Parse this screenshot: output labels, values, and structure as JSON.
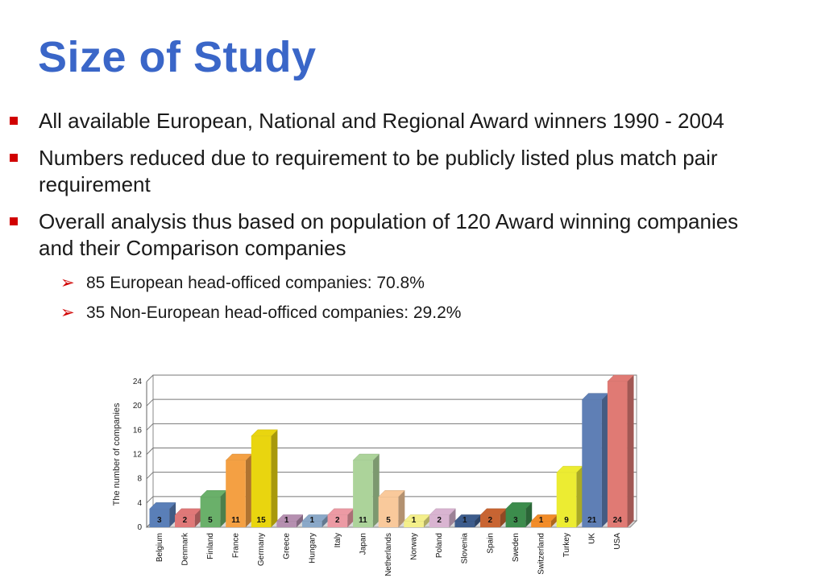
{
  "slide": {
    "title": "Size of Study",
    "bullets": [
      "All available European, National and Regional Award winners 1990 - 2004",
      "Numbers reduced due to requirement to be publicly listed plus match pair requirement",
      "Overall analysis thus based on population of 120 Award winning companies and their Comparison companies"
    ],
    "sub_bullets": [
      "85 European head-officed companies: 70.8%",
      "35 Non-European head-officed companies: 29.2%"
    ]
  },
  "chart_data": {
    "type": "bar",
    "ylabel": "The number of companies",
    "ylim": [
      0,
      24
    ],
    "yticks": [
      0,
      4,
      8,
      12,
      16,
      20,
      24
    ],
    "grid": true,
    "categories": [
      "Belgium",
      "Denmark",
      "Finland",
      "France",
      "Germany",
      "Greece",
      "Hungary",
      "Italy",
      "Japan",
      "Netherlands",
      "Norway",
      "Poland",
      "Slovenia",
      "Spain",
      "Sweden",
      "Switzerland",
      "Turkey",
      "UK",
      "USA"
    ],
    "values": [
      3,
      2,
      5,
      11,
      15,
      1,
      1,
      2,
      11,
      5,
      1,
      2,
      1,
      2,
      3,
      1,
      9,
      21,
      24
    ],
    "colors": [
      "#5a7fb8",
      "#e07878",
      "#6ab06a",
      "#f4a043",
      "#e9d50f",
      "#b58fb0",
      "#8aa8c8",
      "#ec9aa4",
      "#acd39a",
      "#f9c99b",
      "#f4ef8a",
      "#d9b4d1",
      "#3d5c8c",
      "#c86432",
      "#3c8c4c",
      "#f28c28",
      "#ecec32",
      "#5f7fb5",
      "#e07a74"
    ]
  }
}
